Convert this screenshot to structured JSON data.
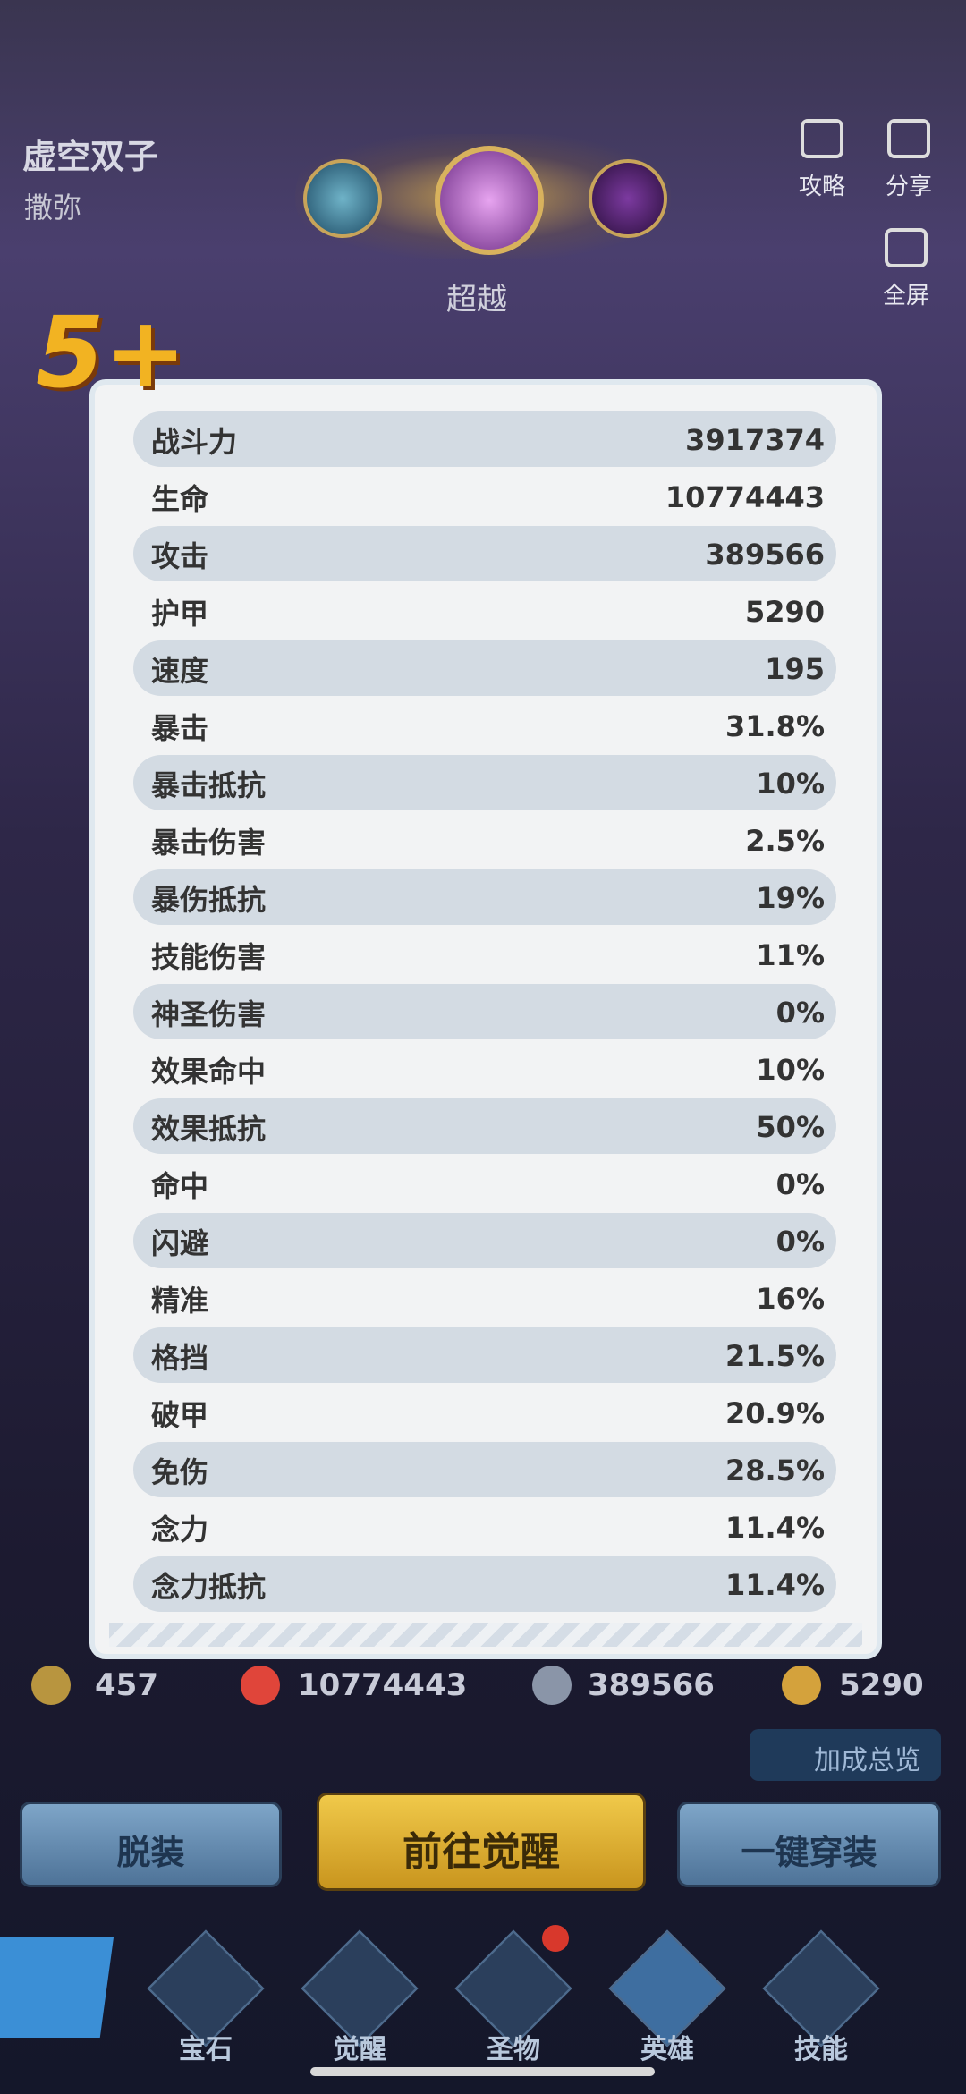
{
  "hero": {
    "name": "虚空双子",
    "subtitle": "撒弥",
    "stars": "5+",
    "stage": "超越"
  },
  "top_actions": [
    "攻略",
    "分享",
    "全屏"
  ],
  "stats": {
    "rows": [
      [
        "战斗力",
        "3917374"
      ],
      [
        "生命",
        "10774443"
      ],
      [
        "攻击",
        "389566"
      ],
      [
        "护甲",
        "5290"
      ],
      [
        "速度",
        "195"
      ],
      [
        "暴击",
        "31.8%"
      ],
      [
        "暴击抵抗",
        "10%"
      ],
      [
        "暴击伤害",
        "2.5%"
      ],
      [
        "暴伤抵抗",
        "19%"
      ],
      [
        "技能伤害",
        "11%"
      ],
      [
        "神圣伤害",
        "0%"
      ],
      [
        "效果命中",
        "10%"
      ],
      [
        "效果抵抗",
        "50%"
      ],
      [
        "命中",
        "0%"
      ],
      [
        "闪避",
        "0%"
      ],
      [
        "精准",
        "16%"
      ],
      [
        "格挡",
        "21.5%"
      ],
      [
        "破甲",
        "20.9%"
      ],
      [
        "免伤",
        "28.5%"
      ],
      [
        "念力",
        "11.4%"
      ],
      [
        "念力抵抗",
        "11.4%"
      ]
    ]
  },
  "summary": {
    "level": "457",
    "hp": "10774443",
    "attack": "389566",
    "armor": "5290"
  },
  "bonus_button": "加成总览",
  "buttons": [
    "脱装",
    "前往觉醒",
    "一键穿装"
  ],
  "nav": [
    "宝石",
    "觉醒",
    "圣物",
    "英雄",
    "技能"
  ]
}
